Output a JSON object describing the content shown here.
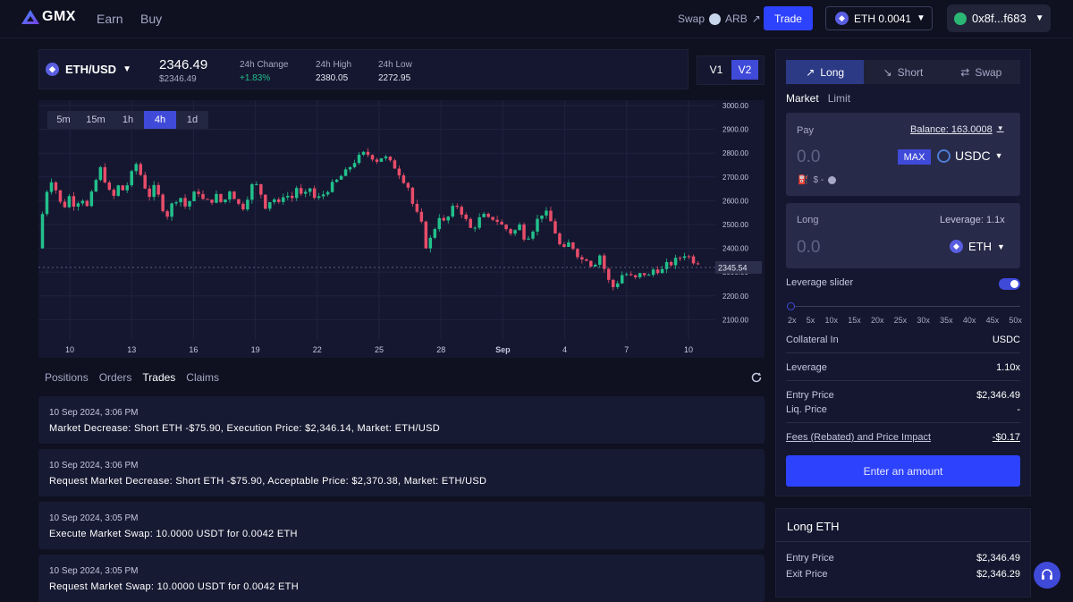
{
  "header": {
    "logo_text": "GMX",
    "nav": [
      "Earn",
      "Buy"
    ],
    "swap_label": "Swap",
    "arb_label": "ARB",
    "trade_button": "Trade",
    "eth_balance": "ETH 0.0041",
    "account": "0x8f...f683"
  },
  "ticker": {
    "pair": "ETH/USD",
    "price": "2346.49",
    "price_usd": "$2346.49",
    "change_label": "24h Change",
    "change_value": "+1.83%",
    "high_label": "24h High",
    "high_value": "2380.05",
    "low_label": "24h Low",
    "low_value": "2272.95",
    "versions": [
      "V1",
      "V2"
    ],
    "active_version": "V2"
  },
  "chart": {
    "timeframes": [
      "5m",
      "15m",
      "1h",
      "4h",
      "1d"
    ],
    "active_timeframe": "4h",
    "current_price_tag": "2345.54",
    "colors": {
      "up": "#22c08b",
      "down": "#e84d6a"
    }
  },
  "chart_data": {
    "type": "candlestick",
    "x_tick_labels": [
      "10",
      "13",
      "16",
      "19",
      "22",
      "25",
      "28",
      "Sep",
      "4",
      "7",
      "10"
    ],
    "y_tick_labels": [
      "3000.00",
      "2900.00",
      "2800.00",
      "2700.00",
      "2600.00",
      "2500.00",
      "2400.00",
      "2300.00",
      "2200.00",
      "2100.00"
    ],
    "ylim": [
      2060,
      3000
    ],
    "close_path": [
      2400,
      2600,
      2700,
      2640,
      2560,
      2620,
      2580,
      2620,
      2570,
      2650,
      2740,
      2680,
      2600,
      2660,
      2640,
      2700,
      2760,
      2680,
      2620,
      2660,
      2580,
      2540,
      2600,
      2620,
      2570,
      2620,
      2640,
      2590,
      2600,
      2620,
      2580,
      2650,
      2610,
      2560,
      2620,
      2680,
      2640,
      2570,
      2620,
      2580,
      2640,
      2600,
      2660,
      2600,
      2660,
      2600,
      2620,
      2650,
      2670,
      2700,
      2720,
      2760,
      2780,
      2800,
      2790,
      2770,
      2790,
      2760,
      2740,
      2700,
      2660,
      2560,
      2520,
      2400,
      2460,
      2540,
      2500,
      2560,
      2580,
      2540,
      2480,
      2500,
      2540,
      2520,
      2530,
      2500,
      2480,
      2460,
      2500,
      2440,
      2470,
      2520,
      2560,
      2520,
      2460,
      2380,
      2420,
      2400,
      2350,
      2360,
      2320,
      2380,
      2300,
      2230,
      2260,
      2300,
      2280,
      2270,
      2300,
      2280,
      2320,
      2300,
      2330,
      2340,
      2360,
      2380,
      2350,
      2346
    ]
  },
  "tabs": {
    "items": [
      "Positions",
      "Orders",
      "Trades",
      "Claims"
    ],
    "active": "Trades"
  },
  "trades": [
    {
      "time": "10 Sep 2024, 3:06 PM",
      "msg": "Market Decrease: Short ETH -$75.90, Execution Price: $2,346.14, Market:  ETH/USD"
    },
    {
      "time": "10 Sep 2024, 3:06 PM",
      "msg": "Request Market Decrease: Short ETH -$75.90, Acceptable Price: $2,370.38, Market:  ETH/USD"
    },
    {
      "time": "10 Sep 2024, 3:05 PM",
      "msg": "Execute Market Swap: 10.0000 USDT for 0.0042 ETH"
    },
    {
      "time": "10 Sep 2024, 3:05 PM",
      "msg": "Request Market Swap: 10.0000 USDT for 0.0042 ETH"
    }
  ],
  "panel": {
    "segments": [
      "Long",
      "Short",
      "Swap"
    ],
    "active_segment": "Long",
    "order_types": [
      "Market",
      "Limit"
    ],
    "pay_label": "Pay",
    "balance": "Balance: 163.0008",
    "pay_value": "0.0",
    "max_label": "MAX",
    "pay_token": "USDC",
    "fee_hint": "$ -",
    "long_label": "Long",
    "leverage_hint": "Leverage: 1.1x",
    "long_value": "0.0",
    "long_token": "ETH",
    "leverage_slider_label": "Leverage slider",
    "leverage_marks": [
      "2x",
      "5x",
      "10x",
      "15x",
      "20x",
      "25x",
      "30x",
      "35x",
      "40x",
      "45x",
      "50x"
    ],
    "rows": [
      {
        "label": "Collateral In",
        "value": "USDC"
      },
      {
        "label": "Leverage",
        "value": "1.10x"
      },
      {
        "label": "Entry Price",
        "value": "$2,346.49"
      },
      {
        "label": "Liq. Price",
        "value": "-"
      },
      {
        "label": "Fees (Rebated) and Price Impact",
        "value": "-$0.17"
      }
    ],
    "enter_button": "Enter an amount"
  },
  "long_info": {
    "title": "Long ETH",
    "rows": [
      {
        "label": "Entry Price",
        "value": "$2,346.49"
      },
      {
        "label": "Exit Price",
        "value": "$2,346.29"
      }
    ]
  }
}
